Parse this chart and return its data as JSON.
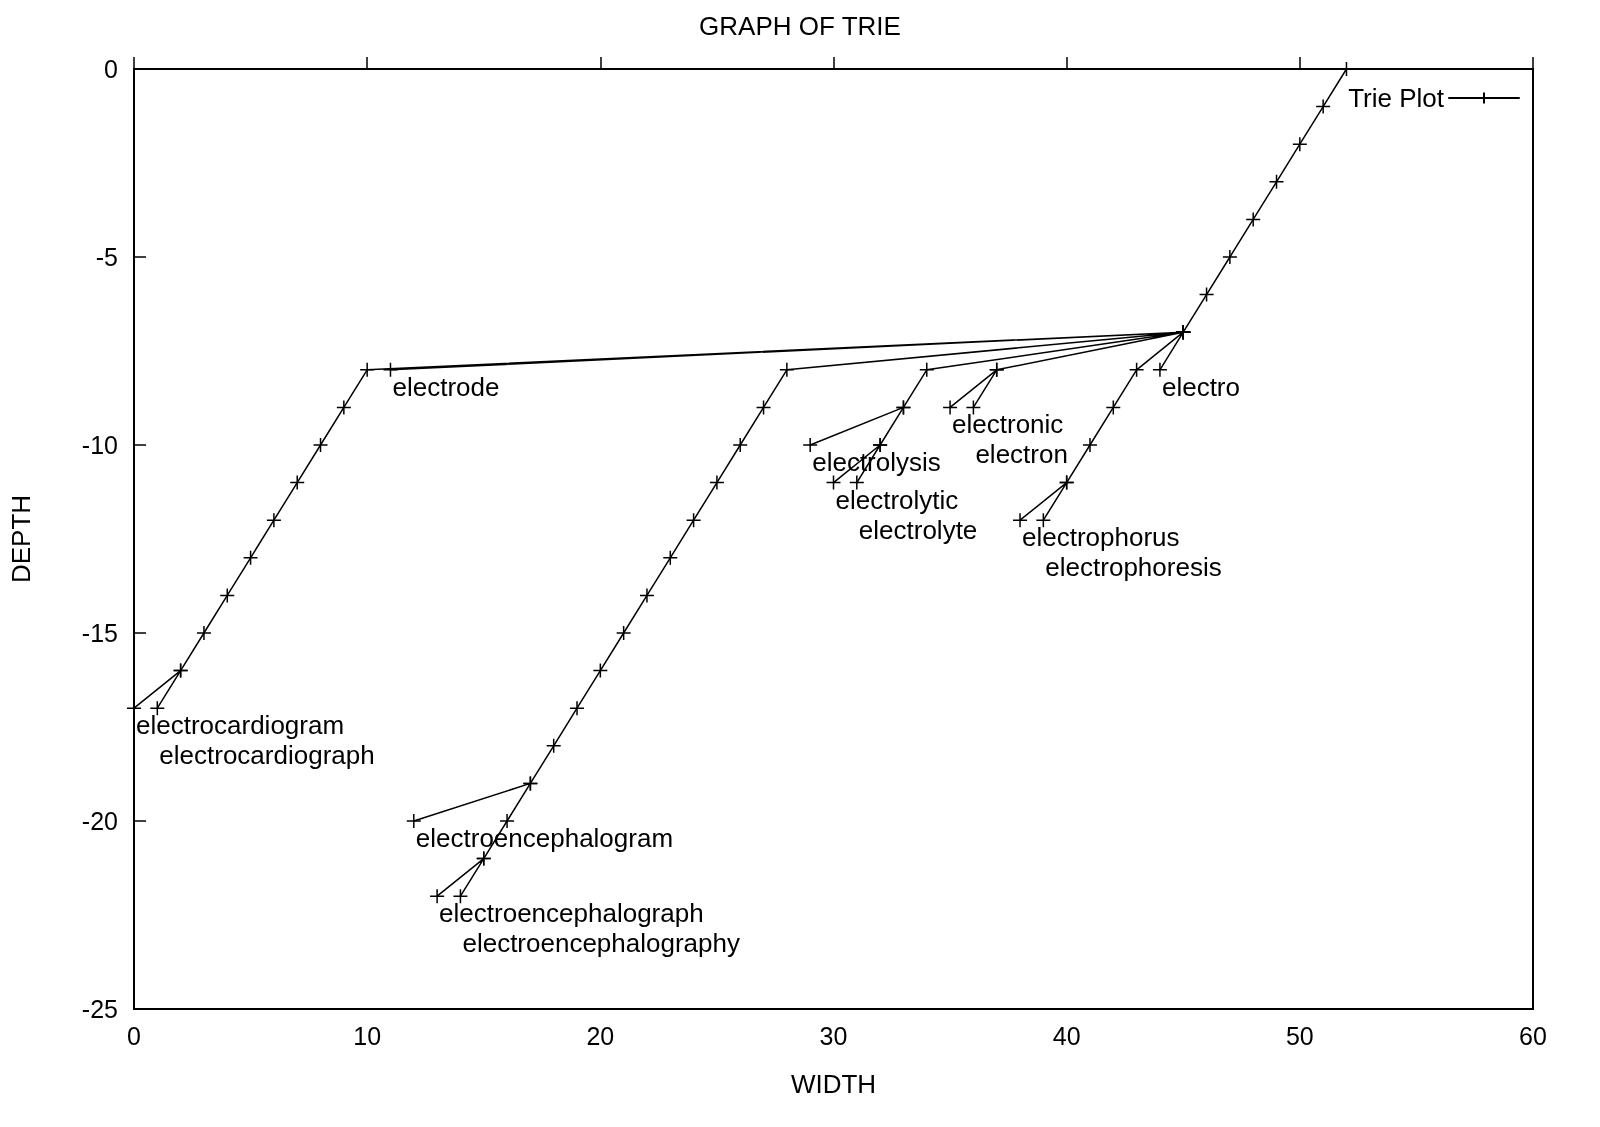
{
  "chart_data": {
    "type": "line",
    "title": "GRAPH OF TRIE",
    "xlabel": "WIDTH",
    "ylabel": "DEPTH",
    "xlim": [
      0,
      60
    ],
    "xticks": [
      0,
      10,
      20,
      30,
      40,
      50,
      60
    ],
    "ylim": [
      -25,
      0
    ],
    "yticks": [
      -25,
      -20,
      -15,
      -10,
      -5,
      0
    ],
    "grid": false,
    "legend": "top right",
    "marker": "cross",
    "line_style": "solid",
    "series": [
      {
        "name": "Trie Plot",
        "color": "#000000",
        "x": [
          52,
          51,
          50,
          49,
          48,
          47,
          46,
          45,
          null,
          45,
          44,
          null,
          45,
          43,
          42,
          41,
          40,
          38,
          null,
          40,
          39,
          null,
          45,
          37,
          35,
          null,
          37,
          36,
          null,
          45,
          34,
          33,
          29,
          null,
          33,
          32,
          30,
          null,
          32,
          31,
          null,
          45,
          28,
          27,
          26,
          25,
          24,
          23,
          22,
          21,
          20,
          19,
          18,
          17,
          12,
          null,
          17,
          16,
          15,
          13,
          null,
          15,
          14,
          null,
          45,
          11,
          null,
          45,
          10,
          9,
          8,
          7,
          6,
          5,
          4,
          3,
          2,
          0,
          null,
          2,
          1
        ],
        "values": [
          0,
          -1,
          -2,
          -3,
          -4,
          -5,
          -6,
          -7,
          null,
          -7,
          -8,
          null,
          -7,
          -8,
          -9,
          -10,
          -11,
          -12,
          null,
          -11,
          -12,
          null,
          -7,
          -8,
          -9,
          null,
          -8,
          -9,
          null,
          -7,
          -8,
          -9,
          -10,
          null,
          -9,
          -10,
          -11,
          null,
          -10,
          -11,
          null,
          -7,
          -8,
          -9,
          -10,
          -11,
          -12,
          -13,
          -14,
          -15,
          -16,
          -17,
          -18,
          -19,
          -20,
          null,
          -19,
          -20,
          -21,
          -22,
          null,
          -21,
          -22,
          null,
          -7,
          -8,
          null,
          -7,
          -8,
          -9,
          -10,
          -11,
          -12,
          -13,
          -14,
          -15,
          -16,
          -17,
          null,
          -16,
          -17
        ]
      }
    ],
    "annotations": [
      {
        "text": "electro",
        "x": 44,
        "y": -8
      },
      {
        "text": "electrode",
        "x": 11,
        "y": -8
      },
      {
        "text": "electrocardiogram",
        "x": 0,
        "y": -17
      },
      {
        "text": "electrocardiograph",
        "x": 1,
        "y": -17
      },
      {
        "text": "electroencephalogram",
        "x": 12,
        "y": -20
      },
      {
        "text": "electroencephalograph",
        "x": 13,
        "y": -22
      },
      {
        "text": "electroencephalography",
        "x": 14,
        "y": -22
      },
      {
        "text": "electrolysis",
        "x": 29,
        "y": -10
      },
      {
        "text": "electrolytic",
        "x": 30,
        "y": -11
      },
      {
        "text": "electrolyte",
        "x": 31,
        "y": -11
      },
      {
        "text": "electronic",
        "x": 35,
        "y": -9
      },
      {
        "text": "electron",
        "x": 36,
        "y": -9
      },
      {
        "text": "electrophorus",
        "x": 38,
        "y": -12
      },
      {
        "text": "electrophoresis",
        "x": 39,
        "y": -12
      }
    ]
  }
}
